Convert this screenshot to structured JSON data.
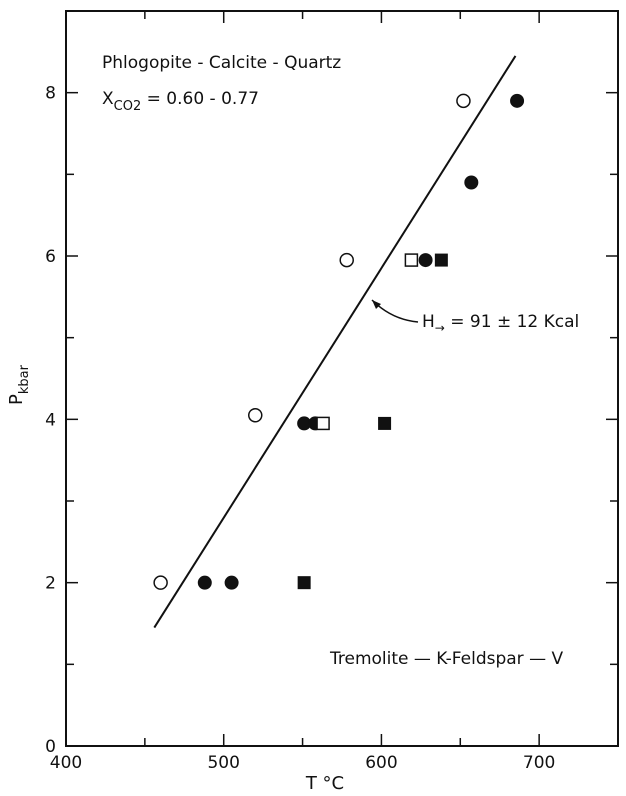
{
  "chart_data": {
    "type": "scatter",
    "xlabel": "T °C",
    "ylabel": "P",
    "ylabel_sub": "kbar",
    "xlim": [
      400,
      750
    ],
    "ylim": [
      0,
      9
    ],
    "x_ticks": [
      400,
      500,
      600,
      700
    ],
    "y_ticks": [
      0,
      2,
      4,
      6,
      8
    ],
    "annotations": {
      "title_line1": "Phlogopite - Calcite - Quartz",
      "title_line2_X": "X",
      "title_line2_sub": "CO2",
      "title_line2_value": " = 0.60 - 0.77",
      "enthalpy_H": "H",
      "enthalpy_arrow": "→",
      "enthalpy_value": " = 91 ± 12 Kcal",
      "lower_label": "Tremolite — K-Feldspar — V"
    },
    "line": {
      "x": [
        456,
        685
      ],
      "y": [
        1.45,
        8.45
      ]
    },
    "series": [
      {
        "marker": "open-circle",
        "points": [
          [
            460,
            2.0
          ],
          [
            520,
            4.05
          ],
          [
            578,
            5.95
          ],
          [
            652,
            7.9
          ]
        ]
      },
      {
        "marker": "filled-circle",
        "points": [
          [
            488,
            2.0
          ],
          [
            505,
            2.0
          ],
          [
            551,
            3.95
          ],
          [
            558,
            3.95
          ],
          [
            628,
            5.95
          ],
          [
            657,
            6.9
          ],
          [
            686,
            7.9
          ]
        ]
      },
      {
        "marker": "open-square",
        "points": [
          [
            563,
            3.95
          ],
          [
            619,
            5.95
          ]
        ]
      },
      {
        "marker": "filled-square",
        "points": [
          [
            551,
            2.0
          ],
          [
            602,
            3.95
          ],
          [
            638,
            5.95
          ]
        ]
      }
    ]
  }
}
